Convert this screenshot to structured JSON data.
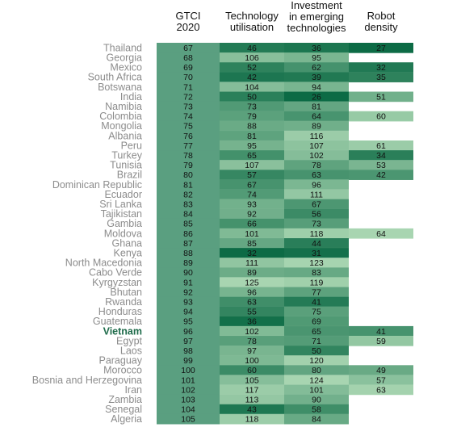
{
  "chart_data": {
    "type": "heatmap",
    "columns": [
      "GTCI\n2020",
      "Technology\nutilisation",
      "Investment\nin emerging\ntechnologies",
      "Robot\ndensity"
    ],
    "highlight_row": "Vietnam",
    "colors": {
      "label": "#8c8c8c",
      "highlight_label": "#1e6b4a",
      "low_rank_light": "#a8d5b1",
      "high_rank_dark": "#0c6b45",
      "gtci_fill": "#5a9f80"
    },
    "rows": [
      {
        "country": "Thailand",
        "values": [
          67,
          46,
          36,
          27
        ]
      },
      {
        "country": "Georgia",
        "values": [
          68,
          106,
          95,
          null
        ]
      },
      {
        "country": "Mexico",
        "values": [
          69,
          52,
          62,
          32
        ]
      },
      {
        "country": "South Africa",
        "values": [
          70,
          42,
          39,
          35
        ]
      },
      {
        "country": "Botswana",
        "values": [
          71,
          104,
          94,
          null
        ]
      },
      {
        "country": "India",
        "values": [
          72,
          50,
          26,
          51
        ]
      },
      {
        "country": "Namibia",
        "values": [
          73,
          73,
          81,
          null
        ]
      },
      {
        "country": "Colombia",
        "values": [
          74,
          79,
          64,
          60
        ]
      },
      {
        "country": "Mongolia",
        "values": [
          75,
          88,
          89,
          null
        ]
      },
      {
        "country": "Albania",
        "values": [
          76,
          81,
          116,
          null
        ]
      },
      {
        "country": "Peru",
        "values": [
          77,
          95,
          107,
          61
        ]
      },
      {
        "country": "Turkey",
        "values": [
          78,
          65,
          102,
          34
        ]
      },
      {
        "country": "Tunisia",
        "values": [
          79,
          107,
          78,
          53
        ]
      },
      {
        "country": "Brazil",
        "values": [
          80,
          57,
          63,
          42
        ]
      },
      {
        "country": "Dominican Republic",
        "values": [
          81,
          67,
          96,
          null
        ]
      },
      {
        "country": "Ecuador",
        "values": [
          82,
          74,
          111,
          null
        ]
      },
      {
        "country": "Sri Lanka",
        "values": [
          83,
          93,
          67,
          null
        ]
      },
      {
        "country": "Tajikistan",
        "values": [
          84,
          92,
          56,
          null
        ]
      },
      {
        "country": "Gambia",
        "values": [
          85,
          66,
          73,
          null
        ]
      },
      {
        "country": "Moldova",
        "values": [
          86,
          101,
          118,
          64
        ]
      },
      {
        "country": "Ghana",
        "values": [
          87,
          85,
          44,
          null
        ]
      },
      {
        "country": "Kenya",
        "values": [
          88,
          32,
          31,
          null
        ]
      },
      {
        "country": "North Macedonia",
        "values": [
          89,
          111,
          123,
          null
        ]
      },
      {
        "country": "Cabo Verde",
        "values": [
          90,
          89,
          83,
          null
        ]
      },
      {
        "country": "Kyrgyzstan",
        "values": [
          91,
          125,
          119,
          null
        ]
      },
      {
        "country": "Bhutan",
        "values": [
          92,
          96,
          77,
          null
        ]
      },
      {
        "country": "Rwanda",
        "values": [
          93,
          63,
          41,
          null
        ]
      },
      {
        "country": "Honduras",
        "values": [
          94,
          55,
          75,
          null
        ]
      },
      {
        "country": "Guatemala",
        "values": [
          95,
          36,
          69,
          null
        ]
      },
      {
        "country": "Vietnam",
        "values": [
          96,
          102,
          65,
          41
        ]
      },
      {
        "country": "Egypt",
        "values": [
          97,
          78,
          71,
          59
        ]
      },
      {
        "country": "Laos",
        "values": [
          98,
          97,
          50,
          null
        ]
      },
      {
        "country": "Paraguay",
        "values": [
          99,
          100,
          120,
          null
        ]
      },
      {
        "country": "Morocco",
        "values": [
          100,
          60,
          80,
          49
        ]
      },
      {
        "country": "Bosnia and Herzegovina",
        "values": [
          101,
          105,
          124,
          57
        ]
      },
      {
        "country": "Iran",
        "values": [
          102,
          117,
          101,
          63
        ]
      },
      {
        "country": "Zambia",
        "values": [
          103,
          113,
          90,
          null
        ]
      },
      {
        "country": "Senegal",
        "values": [
          104,
          43,
          58,
          null
        ]
      },
      {
        "country": "Algeria",
        "values": [
          105,
          118,
          84,
          null
        ]
      }
    ]
  }
}
